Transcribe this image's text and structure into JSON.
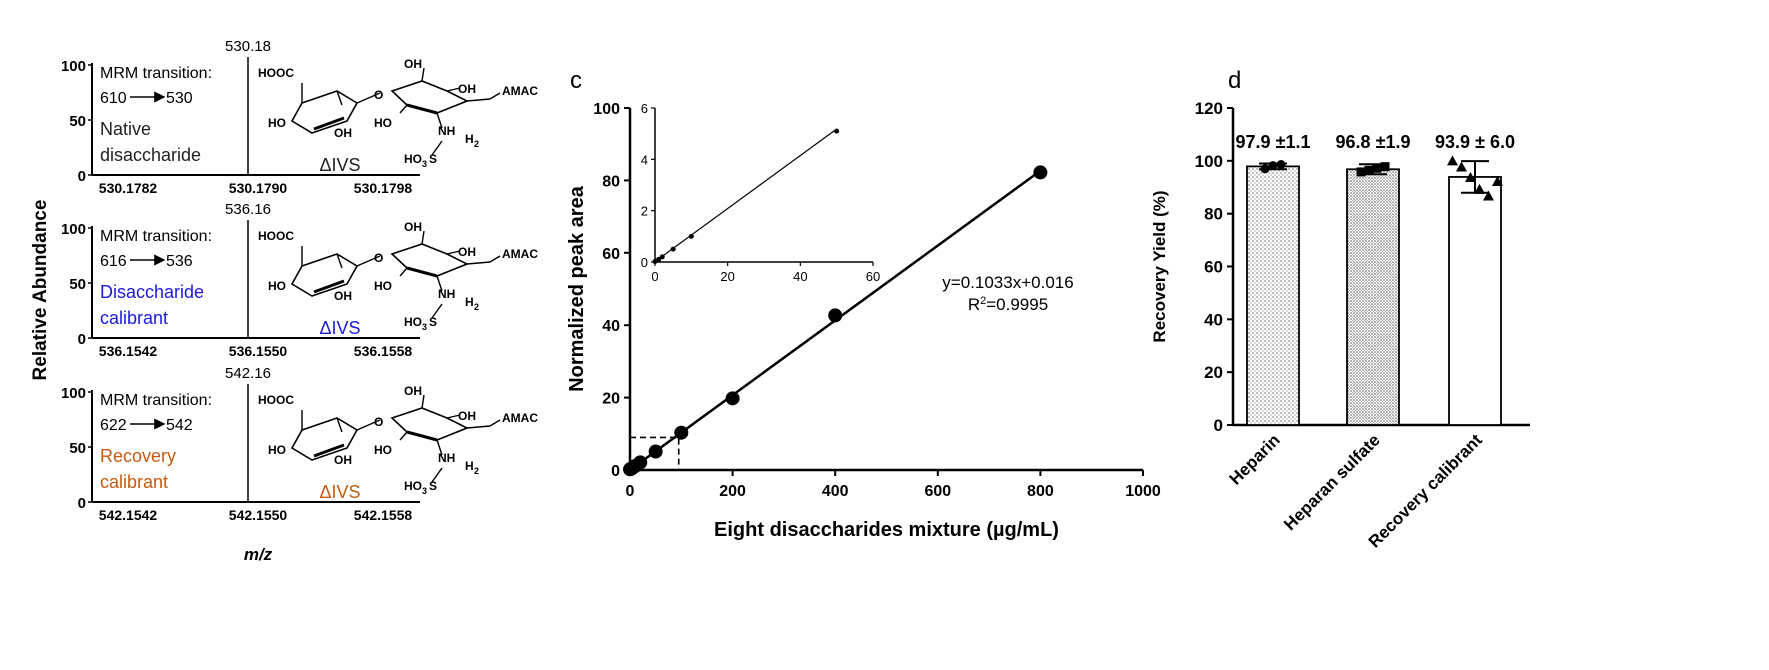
{
  "panel_a": {
    "ylabel": "Relative Abundance",
    "xlabel": "m/z",
    "spectra": [
      {
        "peak_label": "530.18",
        "mrm_line1": "MRM transition:",
        "mrm_from": "610",
        "mrm_to": "530",
        "name_line1": "Native",
        "name_line2": "disaccharide",
        "name_color": "#222222",
        "structure_label": "ΔIVS",
        "x_ticks": [
          "530.1782",
          "530.1790",
          "530.1798"
        ],
        "y_ticks": [
          "100",
          "50",
          "0"
        ]
      },
      {
        "peak_label": "536.16",
        "mrm_line1": "MRM transition:",
        "mrm_from": "616",
        "mrm_to": "536",
        "name_line1": "Disaccharide",
        "name_line2": "calibrant",
        "name_color": "#1a1adc",
        "structure_label": "ΔIVS",
        "x_ticks": [
          "536.1542",
          "536.1550",
          "536.1558"
        ],
        "y_ticks": [
          "100",
          "50",
          "0"
        ]
      },
      {
        "peak_label": "542.16",
        "mrm_line1": "MRM transition:",
        "mrm_from": "622",
        "mrm_to": "542",
        "name_line1": "Recovery",
        "name_line2": "calibrant",
        "name_color": "#c55a11",
        "structure_label": "ΔIVS",
        "x_ticks": [
          "542.1542",
          "542.1550",
          "542.1558"
        ],
        "y_ticks": [
          "100",
          "50",
          "0"
        ]
      }
    ],
    "structure_text": {
      "hooc": "HOOC",
      "oh": "OH",
      "ho": "HO",
      "o": "O",
      "amac": "AMAC",
      "nh": "NH",
      "h2": "H",
      "sub2": "2",
      "ho3s": "HO",
      "sub3": "3",
      "s": "S"
    }
  },
  "chart_data": [
    {
      "panel": "c",
      "type": "scatter",
      "title": "",
      "xlabel": "Eight disaccharides mixture (µg/mL)",
      "ylabel": "Normalized peak area",
      "xlim": [
        0,
        1000
      ],
      "ylim": [
        0,
        100
      ],
      "x_ticks": [
        0,
        200,
        400,
        600,
        800,
        1000
      ],
      "y_ticks": [
        0,
        20,
        40,
        60,
        80,
        100
      ],
      "x": [
        0,
        2,
        5,
        10,
        20,
        50,
        100,
        200,
        400,
        800
      ],
      "y": [
        0.2,
        0.3,
        0.6,
        1.1,
        2.1,
        5.1,
        10.3,
        19.8,
        42.7,
        82.2
      ],
      "fit_line": {
        "x": [
          0,
          800
        ],
        "y": [
          0.016,
          82.656
        ]
      },
      "equation": "y=0.1033x+0.016",
      "r2_label": "R",
      "r2_sup": "2",
      "r2_value": "=0.9995",
      "reference_point": {
        "x": 95,
        "y": 9
      },
      "inset": {
        "xlim": [
          0,
          60
        ],
        "ylim": [
          0,
          6
        ],
        "x_ticks": [
          0,
          20,
          40,
          60
        ],
        "y_ticks": [
          0,
          2,
          4,
          6
        ],
        "x": [
          0,
          1,
          2,
          5,
          10,
          50
        ],
        "y": [
          0.02,
          0.1,
          0.2,
          0.5,
          1.0,
          5.1
        ]
      },
      "grid": false
    },
    {
      "panel": "d",
      "type": "bar",
      "title": "",
      "xlabel": "",
      "ylabel": "Recovery Yield (%)",
      "categories": [
        "Heparin",
        "Heparan sulfate",
        "Recovery calibrant"
      ],
      "values": [
        97.9,
        96.8,
        93.9
      ],
      "errors": [
        1.1,
        1.9,
        6.0
      ],
      "value_labels": [
        "97.9 ±1.1",
        "96.8 ±1.9",
        "93.9 ± 6.0"
      ],
      "ylim": [
        0,
        120
      ],
      "y_ticks": [
        0,
        20,
        40,
        60,
        80,
        100,
        120
      ],
      "replicates": [
        [
          97.0,
          98.2,
          98.6
        ],
        [
          95.8,
          96.4,
          97.2,
          97.8
        ],
        [
          99.8,
          97.5,
          93.5,
          89.0,
          86.5,
          92.0
        ]
      ],
      "grid": false
    }
  ],
  "panel_labels": {
    "c": "c",
    "d": "d"
  }
}
